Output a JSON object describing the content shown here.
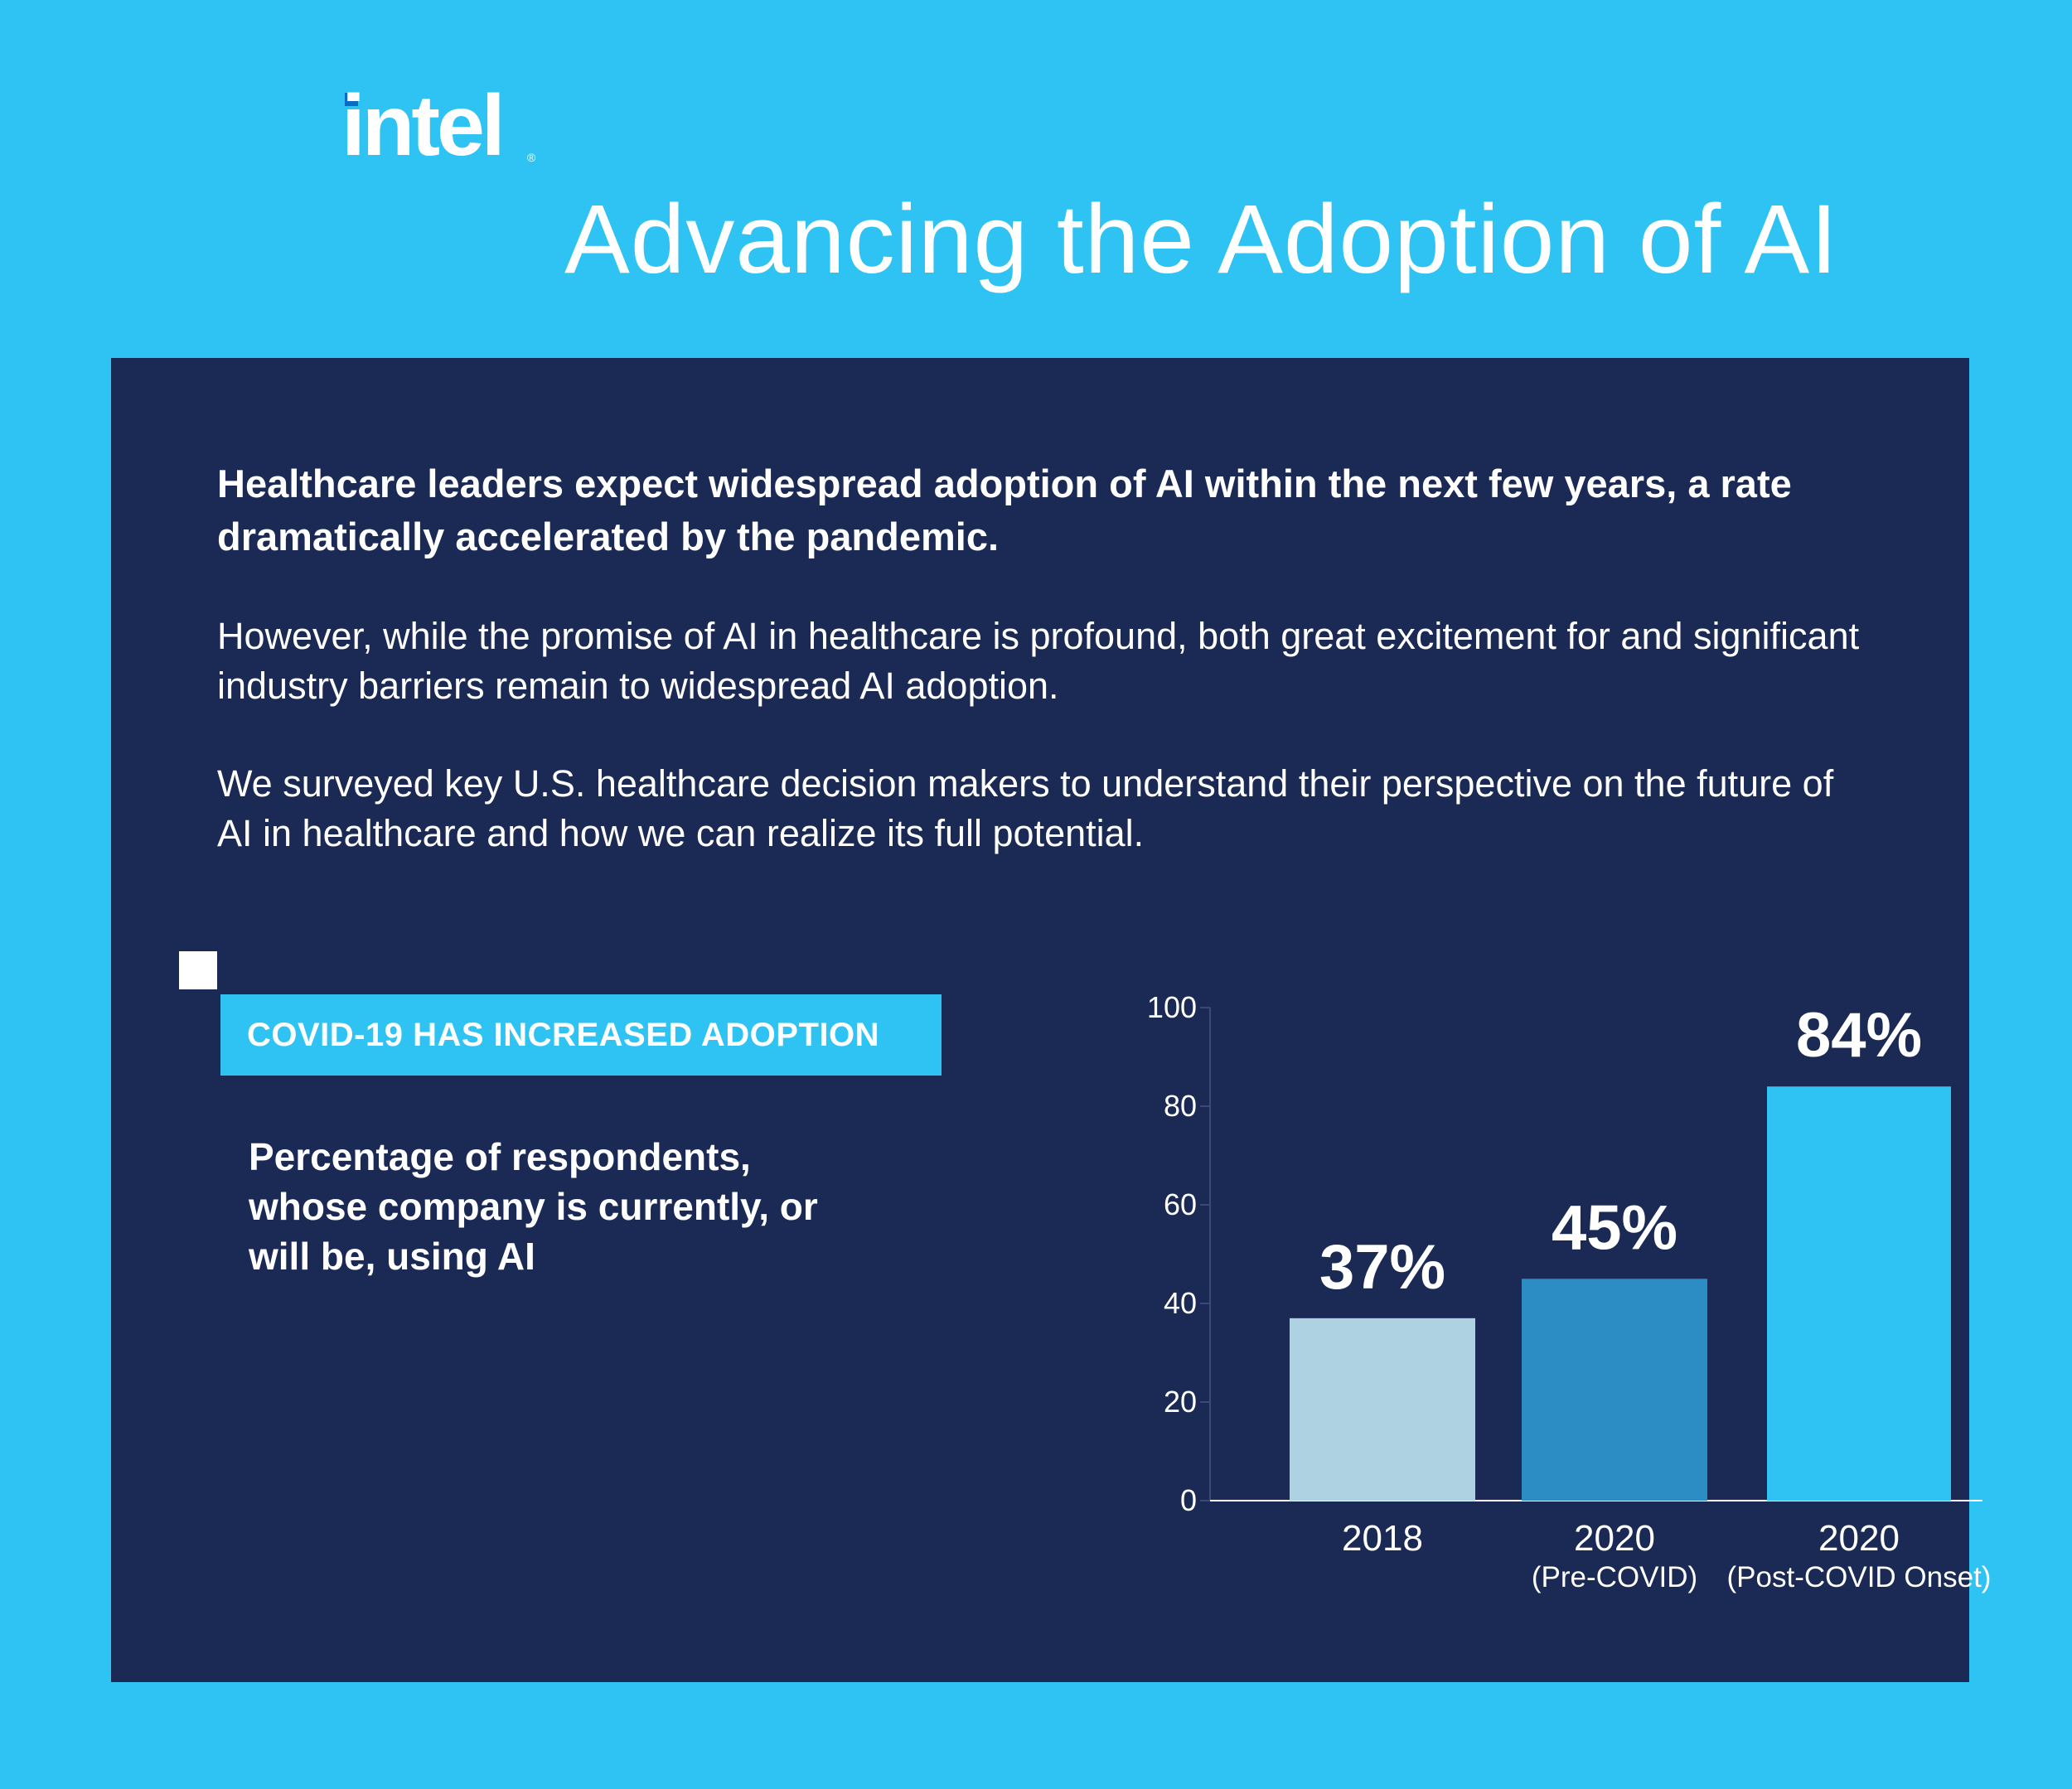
{
  "brand": {
    "name": "intel",
    "registered": "®"
  },
  "page_title": "Advancing the Adoption of AI",
  "intro": {
    "bold": "Healthcare leaders expect widespread adoption of AI within the next few years, a rate dramatically accelerated by the pandemic.",
    "p1": "However, while the promise of AI in healthcare is profound, both great excitement for and significant industry barriers remain to widespread AI adoption.",
    "p2": "We surveyed key U.S. healthcare decision makers to understand their perspective on the future of AI in healthcare and how we can realize its full potential."
  },
  "section": {
    "label": "COVID-19 HAS INCREASED ADOPTION",
    "description": "Percentage of respondents, whose company is currently, or will be, using AI"
  },
  "colors": {
    "background": "#2ec3f2",
    "panel": "#1b2a55",
    "bar_2018": "#aed2e2",
    "bar_2020_pre": "#2c8dc4",
    "bar_2020_post": "#2ec3f2"
  },
  "chart_data": {
    "type": "bar",
    "categories": [
      "2018",
      "2020",
      "2020"
    ],
    "category_sublabels": [
      "",
      "(Pre-COVID)",
      "(Post-COVID Onset)"
    ],
    "values": [
      37,
      45,
      84
    ],
    "value_labels": [
      "37%",
      "45%",
      "84%"
    ],
    "bar_colors": [
      "#aed2e2",
      "#2c8dc4",
      "#2ec3f2"
    ],
    "ylim": [
      0,
      100
    ],
    "yticks": [
      0,
      20,
      40,
      60,
      80,
      100
    ],
    "title": "",
    "xlabel": "",
    "ylabel": "",
    "grid": false
  }
}
